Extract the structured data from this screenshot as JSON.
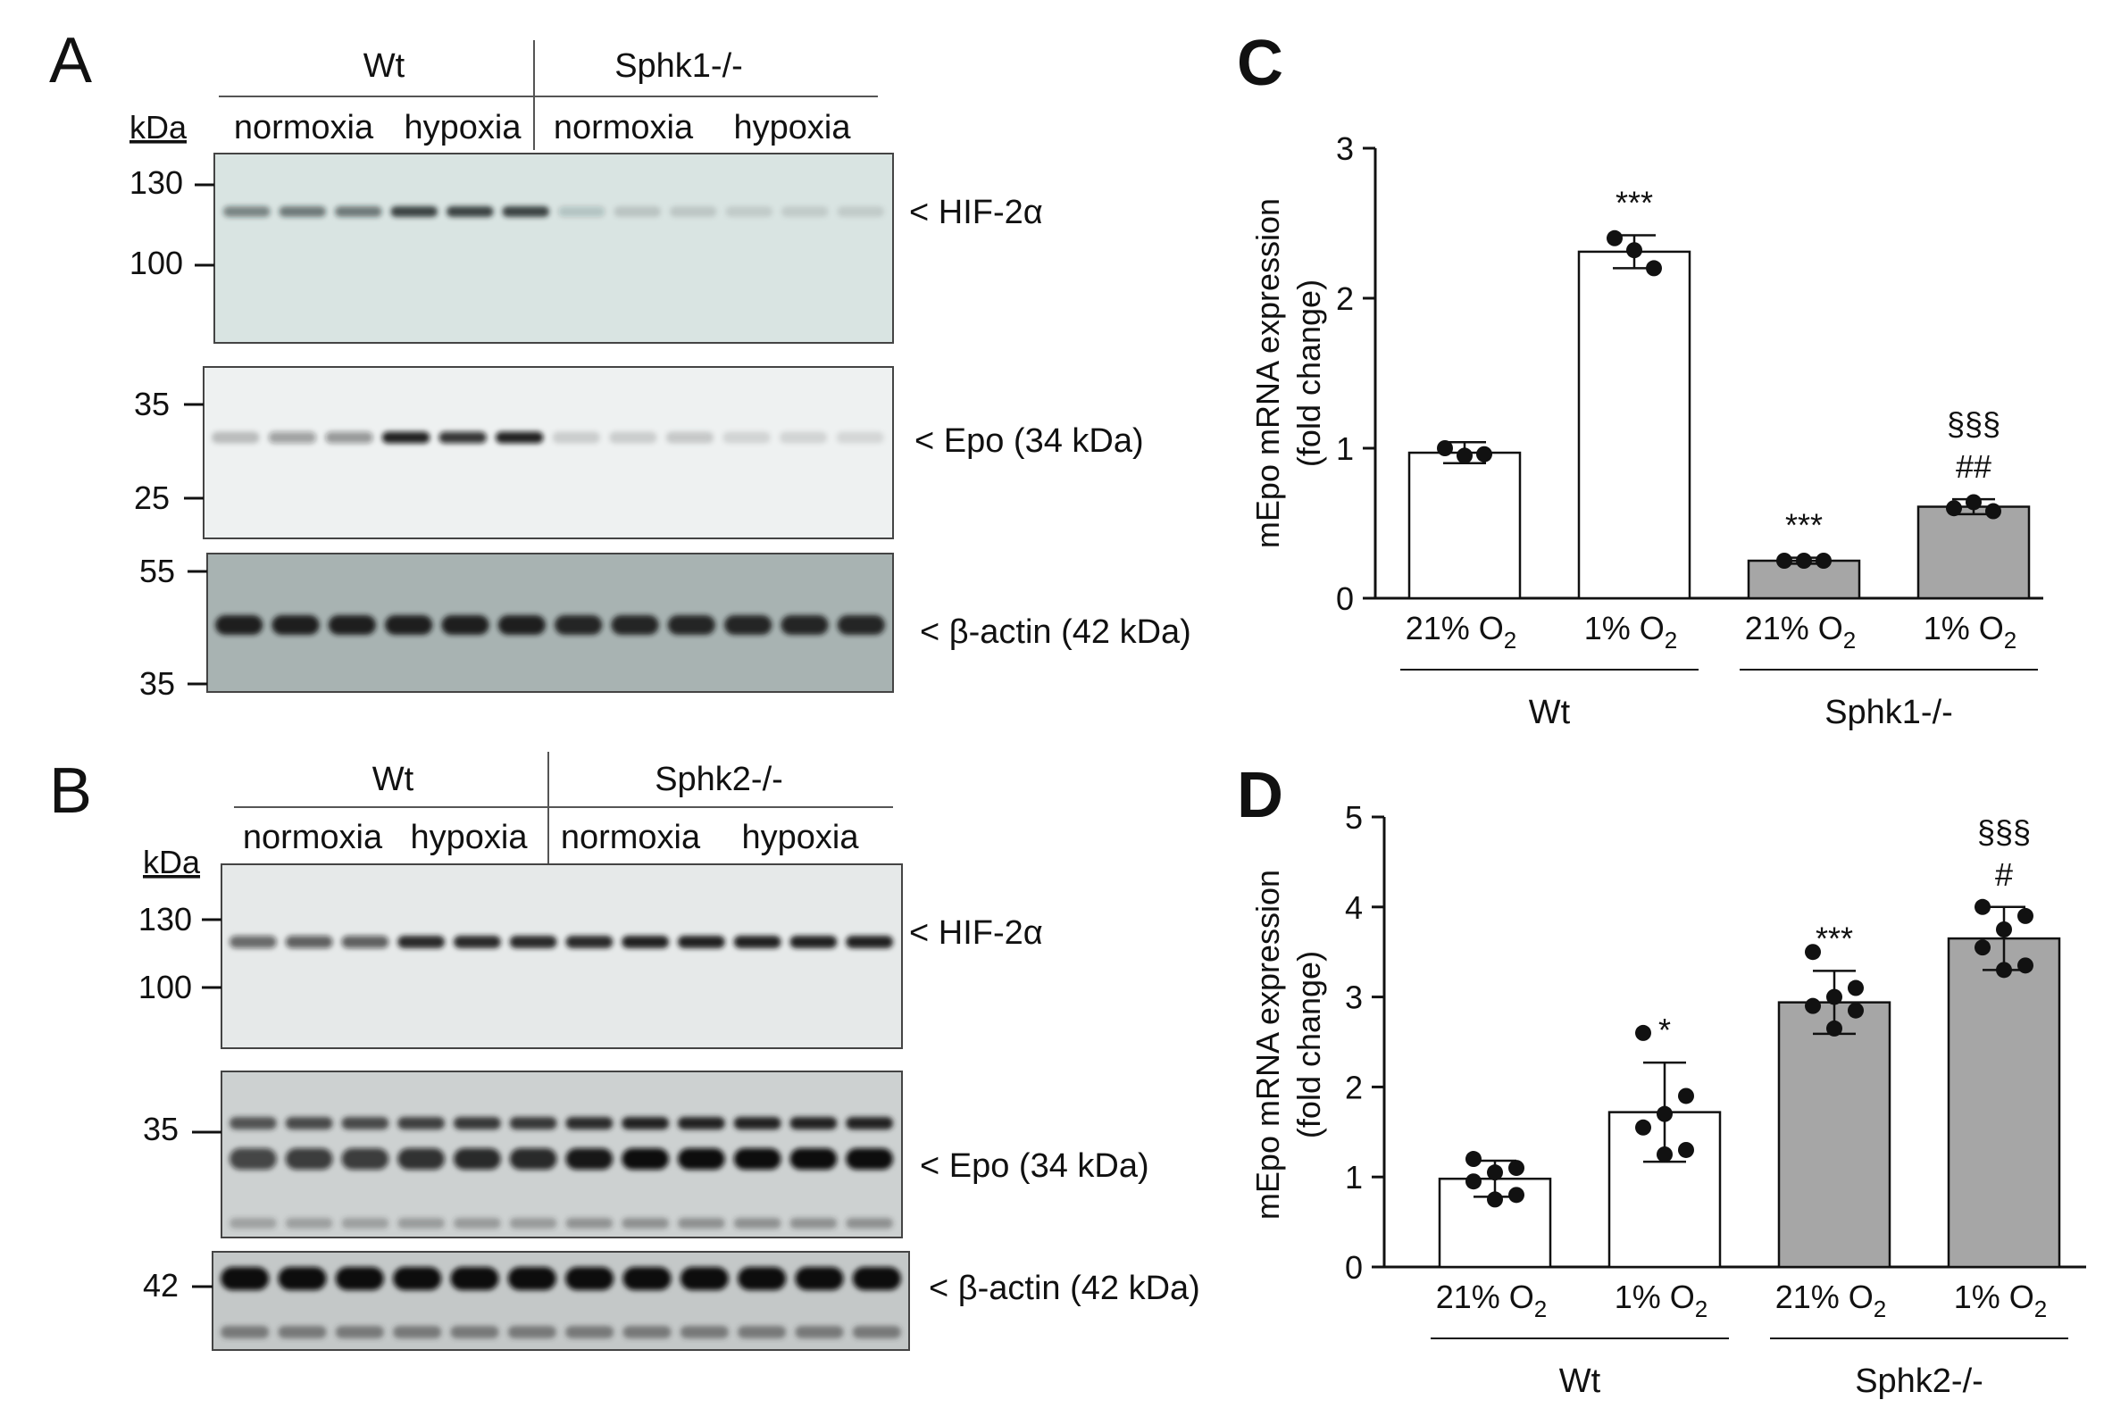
{
  "panels": {
    "A": {
      "letter": "A",
      "group_wt": "Wt",
      "group_ko": "Sphk1-/-",
      "conditions": [
        "normoxia",
        "hypoxia",
        "normoxia",
        "hypoxia"
      ],
      "kda_label": "kDa",
      "markers": {
        "hif": [
          "130",
          "100"
        ],
        "epo": [
          "35",
          "25"
        ],
        "actin": [
          "55",
          "35"
        ]
      },
      "band_labels": [
        "< HIF-2α",
        "< Epo (34 kDa)",
        "< β-actin (42 kDa)"
      ],
      "band_intensity": {
        "hif": [
          0.45,
          0.5,
          0.5,
          0.8,
          0.8,
          0.8,
          0.1,
          0.06,
          0.05,
          0.03,
          0.03,
          0.03
        ],
        "epo": [
          0.15,
          0.3,
          0.35,
          0.9,
          0.8,
          0.9,
          0.08,
          0.08,
          0.1,
          0.04,
          0.04,
          0.03
        ],
        "actin": [
          0.95,
          0.95,
          0.95,
          0.95,
          0.95,
          0.95,
          0.9,
          0.9,
          0.9,
          0.9,
          0.9,
          0.9
        ]
      }
    },
    "B": {
      "letter": "B",
      "group_wt": "Wt",
      "group_ko": "Sphk2-/-",
      "conditions": [
        "normoxia",
        "hypoxia",
        "normoxia",
        "hypoxia"
      ],
      "kda_label": "kDa",
      "markers": {
        "hif": [
          "130",
          "100"
        ],
        "epo": [
          "35"
        ],
        "actin": [
          "42"
        ]
      },
      "band_labels": [
        "< HIF-2α",
        "< Epo (34 kDa)",
        "< β-actin (42 kDa)"
      ],
      "band_intensity": {
        "hif": [
          0.55,
          0.6,
          0.6,
          0.9,
          0.9,
          0.9,
          0.9,
          0.95,
          0.95,
          0.95,
          0.95,
          0.95
        ],
        "epo": [
          0.7,
          0.75,
          0.75,
          0.8,
          0.85,
          0.85,
          0.95,
          1.0,
          1.0,
          1.0,
          1.0,
          1.0
        ],
        "actin": [
          1.0,
          1.0,
          1.0,
          1.0,
          1.0,
          1.0,
          1.0,
          1.0,
          1.0,
          1.0,
          1.0,
          1.0
        ]
      }
    }
  },
  "chart_data": [
    {
      "panel": "C",
      "type": "bar",
      "ylabel_line1": "mEpo mRNA expression",
      "ylabel_line2": "(fold change)",
      "ylim": [
        0,
        3
      ],
      "yticks": [
        "0",
        "1",
        "2",
        "3"
      ],
      "categories": [
        "21% O",
        "1% O",
        "21% O",
        "1% O"
      ],
      "category_subscript": "2",
      "values": [
        0.97,
        2.31,
        0.25,
        0.61
      ],
      "errors": [
        0.07,
        0.11,
        0.02,
        0.05
      ],
      "points": [
        [
          1.0,
          0.95,
          0.96
        ],
        [
          2.4,
          2.32,
          2.2
        ],
        [
          0.25,
          0.25,
          0.25
        ],
        [
          0.6,
          0.64,
          0.58
        ]
      ],
      "bar_colors": [
        "#ffffff",
        "#ffffff",
        "#a6a6a6",
        "#a6a6a6"
      ],
      "annotations": [
        [],
        [
          "***"
        ],
        [
          "***"
        ],
        [
          "§§§",
          "##"
        ]
      ],
      "groups": [
        {
          "label": "Wt",
          "bars": [
            0,
            1
          ]
        },
        {
          "label": "Sphk1-/-",
          "bars": [
            2,
            3
          ]
        }
      ]
    },
    {
      "panel": "D",
      "type": "bar",
      "ylabel_line1": "mEpo mRNA expression",
      "ylabel_line2": "(fold change)",
      "ylim": [
        0,
        5
      ],
      "yticks": [
        "0",
        "1",
        "2",
        "3",
        "4",
        "5"
      ],
      "categories": [
        "21% O",
        "1% O",
        "21% O",
        "1% O"
      ],
      "category_subscript": "2",
      "values": [
        0.98,
        1.72,
        2.94,
        3.65
      ],
      "errors": [
        0.2,
        0.55,
        0.35,
        0.35
      ],
      "points": [
        [
          1.2,
          1.1,
          1.05,
          0.95,
          0.8,
          0.75
        ],
        [
          2.6,
          1.9,
          1.7,
          1.55,
          1.3,
          1.25
        ],
        [
          3.5,
          3.1,
          3.0,
          2.9,
          2.85,
          2.65
        ],
        [
          4.0,
          3.9,
          3.75,
          3.55,
          3.35,
          3.3
        ]
      ],
      "bar_colors": [
        "#ffffff",
        "#ffffff",
        "#a6a6a6",
        "#a6a6a6"
      ],
      "annotations": [
        [],
        [
          "*"
        ],
        [
          "***"
        ],
        [
          "§§§",
          "#"
        ]
      ],
      "groups": [
        {
          "label": "Wt",
          "bars": [
            0,
            1
          ]
        },
        {
          "label": "Sphk2-/-",
          "bars": [
            2,
            3
          ]
        }
      ]
    }
  ]
}
